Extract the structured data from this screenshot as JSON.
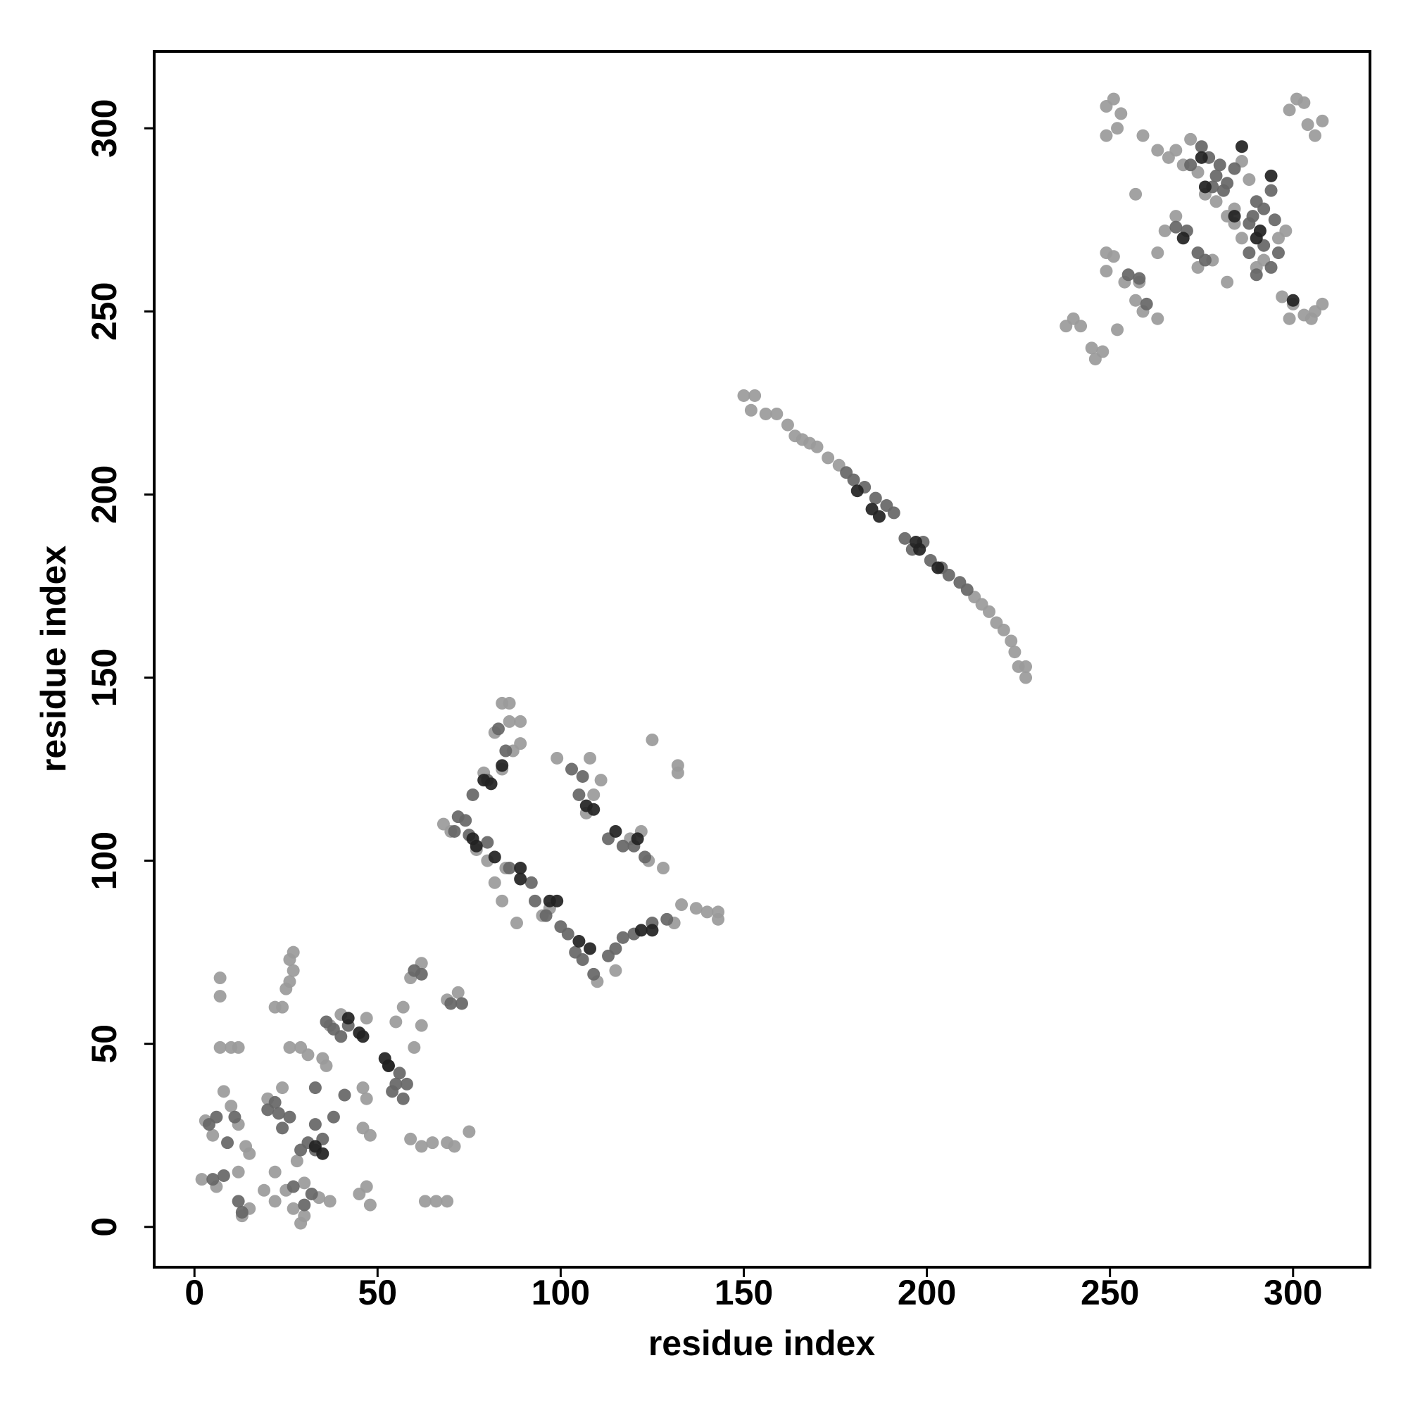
{
  "chart_data": {
    "type": "scatter",
    "xlabel": "residue index",
    "ylabel": "residue index",
    "xlim": [
      -11,
      321
    ],
    "ylim": [
      -11,
      321
    ],
    "xticks": [
      0,
      50,
      100,
      150,
      200,
      250,
      300
    ],
    "yticks": [
      0,
      50,
      100,
      150,
      200,
      250,
      300
    ],
    "grid": false,
    "series": [
      {
        "color": "#9a9a9a",
        "x": [
          150,
          153,
          152,
          156,
          159,
          162,
          164,
          166,
          168,
          170,
          173,
          176,
          213,
          215,
          217,
          219,
          221,
          223,
          224,
          225,
          227,
          227,
          84,
          86,
          86,
          89,
          89,
          87,
          82,
          79,
          84,
          68,
          70,
          82,
          84,
          88,
          95,
          97,
          108,
          111,
          109,
          107,
          119,
          122,
          125,
          124,
          128,
          133,
          137,
          140,
          143,
          143,
          131,
          115,
          110,
          99,
          132,
          132,
          77,
          80,
          85,
          7,
          7,
          7,
          10,
          12,
          3,
          5,
          8,
          10,
          12,
          14,
          15,
          12,
          2,
          6,
          13,
          15,
          22,
          25,
          27,
          29,
          30,
          34,
          37,
          24,
          22,
          26,
          26,
          27,
          25,
          27,
          26,
          29,
          31,
          35,
          36,
          37,
          40,
          47,
          46,
          47,
          46,
          48,
          45,
          47,
          48,
          59,
          62,
          65,
          69,
          71,
          75,
          63,
          66,
          69,
          60,
          62,
          57,
          55,
          59,
          62,
          69,
          72,
          28,
          30,
          20,
          24,
          19,
          22,
          249,
          251,
          253,
          252,
          249,
          257,
          259,
          263,
          266,
          268,
          270,
          272,
          274,
          276,
          279,
          282,
          284,
          286,
          288,
          299,
          301,
          303,
          304,
          306,
          308,
          297,
          300,
          303,
          306,
          308,
          299,
          305,
          249,
          251,
          249,
          238,
          240,
          242,
          245,
          246,
          248,
          252,
          257,
          259,
          263,
          282,
          265,
          268,
          274,
          278,
          290,
          292,
          284,
          286,
          296,
          298,
          263,
          258,
          254
        ],
        "values": [
          227,
          227,
          223,
          222,
          222,
          219,
          216,
          215,
          214,
          213,
          210,
          208,
          172,
          170,
          168,
          165,
          163,
          160,
          157,
          153,
          153,
          150,
          143,
          143,
          138,
          138,
          132,
          130,
          135,
          124,
          125,
          110,
          108,
          94,
          89,
          83,
          85,
          87,
          128,
          122,
          118,
          113,
          106,
          108,
          133,
          100,
          98,
          88,
          87,
          86,
          84,
          86,
          83,
          70,
          67,
          128,
          126,
          124,
          103,
          100,
          98,
          68,
          63,
          49,
          49,
          49,
          29,
          25,
          37,
          33,
          28,
          22,
          20,
          15,
          13,
          11,
          3,
          5,
          7,
          10,
          5,
          1,
          3,
          8,
          7,
          60,
          60,
          67,
          73,
          70,
          65,
          75,
          49,
          49,
          47,
          46,
          44,
          55,
          58,
          57,
          38,
          35,
          27,
          25,
          9,
          11,
          6,
          24,
          22,
          23,
          23,
          22,
          26,
          7,
          7,
          7,
          49,
          55,
          60,
          56,
          68,
          72,
          62,
          64,
          18,
          12,
          35,
          38,
          10,
          15,
          306,
          308,
          304,
          300,
          298,
          282,
          298,
          294,
          292,
          294,
          290,
          297,
          288,
          282,
          280,
          276,
          278,
          291,
          286,
          305,
          308,
          307,
          301,
          298,
          302,
          254,
          252,
          249,
          250,
          252,
          248,
          248,
          266,
          265,
          261,
          246,
          248,
          246,
          240,
          237,
          239,
          245,
          253,
          250,
          248,
          258,
          272,
          276,
          262,
          264,
          262,
          264,
          274,
          270,
          270,
          272,
          266,
          258,
          258
        ]
      },
      {
        "color": "#666666",
        "x": [
          178,
          180,
          183,
          186,
          189,
          191,
          194,
          196,
          199,
          201,
          204,
          206,
          209,
          211,
          85,
          83,
          80,
          76,
          72,
          71,
          75,
          80,
          74,
          86,
          92,
          96,
          100,
          102,
          104,
          106,
          113,
          115,
          117,
          120,
          125,
          129,
          103,
          106,
          105,
          113,
          117,
          120,
          123,
          109,
          93,
          5,
          8,
          4,
          6,
          9,
          11,
          13,
          12,
          20,
          22,
          23,
          26,
          29,
          31,
          33,
          35,
          33,
          36,
          38,
          40,
          42,
          38,
          41,
          54,
          55,
          57,
          58,
          56,
          60,
          62,
          70,
          73,
          30,
          32,
          33,
          27,
          24,
          53,
          255,
          258,
          260,
          268,
          271,
          274,
          276,
          277,
          279,
          282,
          284,
          290,
          292,
          294,
          289,
          292,
          288,
          290,
          294,
          296,
          295,
          280,
          275,
          278,
          281,
          288,
          272
        ],
        "values": [
          206,
          204,
          202,
          199,
          197,
          195,
          188,
          185,
          187,
          182,
          180,
          178,
          176,
          174,
          130,
          136,
          122,
          118,
          112,
          108,
          107,
          105,
          111,
          98,
          94,
          85,
          82,
          80,
          75,
          73,
          74,
          76,
          79,
          80,
          83,
          84,
          125,
          123,
          118,
          106,
          104,
          104,
          101,
          69,
          89,
          13,
          14,
          28,
          30,
          23,
          30,
          4,
          7,
          32,
          34,
          31,
          30,
          21,
          23,
          21,
          24,
          28,
          56,
          54,
          52,
          55,
          30,
          36,
          37,
          39,
          35,
          39,
          42,
          70,
          69,
          61,
          61,
          6,
          9,
          38,
          11,
          27,
          44,
          260,
          259,
          252,
          273,
          272,
          266,
          264,
          292,
          287,
          285,
          289,
          280,
          278,
          283,
          276,
          268,
          266,
          260,
          262,
          266,
          275,
          290,
          295,
          284,
          283,
          274,
          290
        ]
      },
      {
        "color": "#222222",
        "x": [
          181,
          185,
          187,
          197,
          198,
          203,
          84,
          79,
          81,
          76,
          77,
          82,
          89,
          89,
          97,
          99,
          105,
          108,
          122,
          125,
          107,
          109,
          115,
          121,
          45,
          46,
          52,
          53,
          33,
          35,
          42,
          275,
          276,
          286,
          294,
          291,
          284,
          290,
          270,
          300
        ],
        "values": [
          201,
          196,
          194,
          187,
          185,
          180,
          126,
          122,
          121,
          106,
          104,
          101,
          98,
          95,
          89,
          89,
          78,
          76,
          81,
          81,
          115,
          114,
          108,
          106,
          53,
          52,
          46,
          44,
          22,
          20,
          57,
          292,
          284,
          295,
          287,
          272,
          276,
          270,
          270,
          253
        ]
      }
    ]
  }
}
